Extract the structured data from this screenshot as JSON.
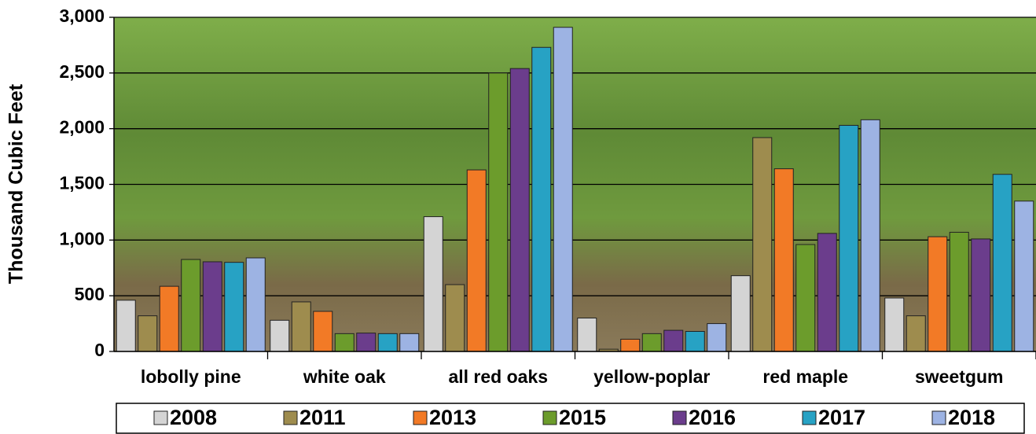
{
  "chart_data": {
    "type": "bar",
    "y_label": "Thousand Cubic Feet",
    "categories": [
      "lobolly pine",
      "white oak",
      "all red oaks",
      "yellow-poplar",
      "red maple",
      "sweetgum"
    ],
    "series": [
      {
        "name": "2008",
        "color": "#d4d4d4",
        "values": [
          460,
          280,
          1210,
          300,
          680,
          480
        ]
      },
      {
        "name": "2011",
        "color": "#9e8c4e",
        "values": [
          320,
          445,
          600,
          20,
          1920,
          320
        ]
      },
      {
        "name": "2013",
        "color": "#f27a26",
        "values": [
          585,
          360,
          1630,
          110,
          1640,
          1030
        ]
      },
      {
        "name": "2015",
        "color": "#6c9c2c",
        "values": [
          826,
          160,
          2500,
          160,
          960,
          1070
        ]
      },
      {
        "name": "2016",
        "color": "#6b3d8c",
        "values": [
          805,
          165,
          2540,
          190,
          1060,
          1010
        ]
      },
      {
        "name": "2017",
        "color": "#27a2c4",
        "values": [
          800,
          160,
          2730,
          180,
          2030,
          1590
        ]
      },
      {
        "name": "2018",
        "color": "#9db3e3",
        "values": [
          840,
          160,
          2910,
          250,
          2080,
          1350
        ]
      }
    ],
    "ylim": [
      0,
      3000
    ],
    "yticks": [
      0,
      500,
      {
        "value": 1000,
        "label": "1,000"
      },
      {
        "value": 1500,
        "label": "1,500"
      },
      {
        "value": 2000,
        "label": "2,000"
      },
      {
        "value": 2500,
        "label": "2,500"
      },
      {
        "value": 3000,
        "label": "3,000"
      }
    ],
    "grid": true
  }
}
